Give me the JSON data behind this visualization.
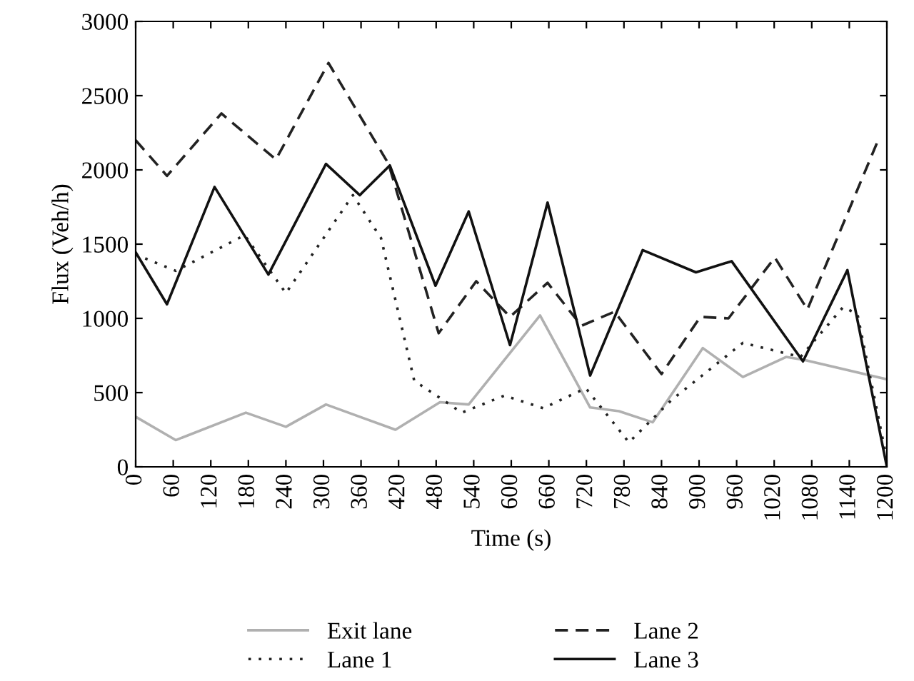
{
  "chart_data": {
    "type": "line",
    "xlabel": "Time (s)",
    "ylabel": "Flux (Veh/h)",
    "xlim": [
      0,
      1200
    ],
    "ylim": [
      0,
      3000
    ],
    "xticks": [
      0,
      60,
      120,
      180,
      240,
      300,
      360,
      420,
      480,
      540,
      600,
      660,
      720,
      780,
      840,
      900,
      960,
      1020,
      1080,
      1140,
      1200
    ],
    "yticks": [
      0,
      500,
      1000,
      1500,
      2000,
      2500,
      3000
    ],
    "grid": false,
    "legend": "bottom",
    "marker": "none",
    "series": [
      {
        "name": "Exit lane",
        "color": "#b0b0b0",
        "line_style": "solid",
        "x": [
          0,
          64,
          176,
          240,
          304,
          415,
          486,
          532,
          646,
          726,
          772,
          826,
          906,
          970,
          1039,
          1068,
          1200
        ],
        "values": [
          337,
          180,
          365,
          270,
          420,
          250,
          435,
          420,
          1020,
          400,
          375,
          300,
          800,
          605,
          740,
          720,
          590
        ]
      },
      {
        "name": "Lane 1",
        "color": "#222222",
        "line_style": "dotted",
        "x": [
          0,
          64,
          174,
          240,
          347,
          392,
          445,
          521,
          589,
          651,
          719,
          788,
          856,
          970,
          1062,
          1130,
          1153,
          1200
        ],
        "values": [
          1430,
          1320,
          1560,
          1170,
          1830,
          1540,
          580,
          365,
          480,
          395,
          530,
          165,
          450,
          835,
          740,
          1075,
          1030,
          50
        ]
      },
      {
        "name": "Lane 2",
        "color": "#222222",
        "line_style": "dashed",
        "x": [
          0,
          50,
          137,
          224,
          308,
          404,
          484,
          544,
          598,
          658,
          712,
          765,
          840,
          902,
          947,
          1021,
          1073,
          1187
        ],
        "values": [
          2200,
          1960,
          2380,
          2070,
          2720,
          2040,
          900,
          1250,
          1010,
          1240,
          950,
          1045,
          625,
          1010,
          1000,
          1410,
          1060,
          2210
        ]
      },
      {
        "name": "Lane 3",
        "color": "#111111",
        "line_style": "solid",
        "x": [
          0,
          50,
          126,
          212,
          304,
          358,
          406,
          479,
          532,
          598,
          658,
          726,
          810,
          895,
          952,
          1066,
          1137,
          1200
        ],
        "values": [
          1445,
          1095,
          1885,
          1295,
          2040,
          1830,
          2030,
          1220,
          1720,
          820,
          1780,
          615,
          1460,
          1310,
          1385,
          710,
          1325,
          0
        ]
      }
    ]
  }
}
